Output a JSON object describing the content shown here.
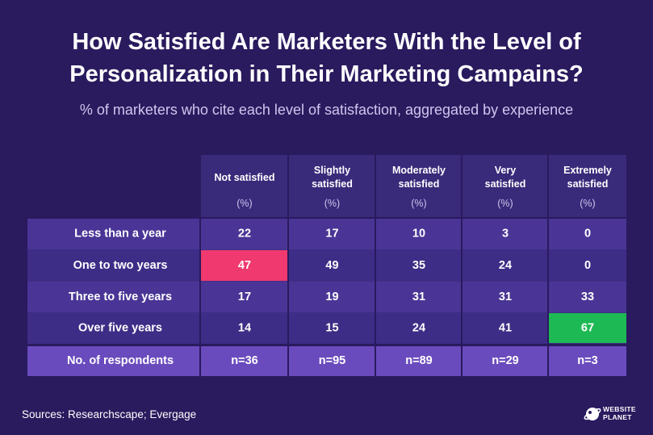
{
  "header": {
    "title_line1": "How Satisfied Are Marketers With the Level of",
    "title_line2": "Personalization in Their Marketing Campains?",
    "subtitle": "% of marketers who cite each level of satisfaction, aggregated by experience"
  },
  "chart_data": {
    "type": "table",
    "columns": [
      {
        "label": [
          "Not satisfied"
        ],
        "unit": "(%)"
      },
      {
        "label": [
          "Slightly",
          "satisfied"
        ],
        "unit": "(%)"
      },
      {
        "label": [
          "Moderately",
          "satisfied"
        ],
        "unit": "(%)"
      },
      {
        "label": [
          "Very",
          "satisfied"
        ],
        "unit": "(%)"
      },
      {
        "label": [
          "Extremely",
          "satisfied"
        ],
        "unit": "(%)"
      }
    ],
    "rows": [
      {
        "label": "Less than a year",
        "values": [
          22,
          17,
          10,
          3,
          0
        ]
      },
      {
        "label": "One to two years",
        "values": [
          47,
          49,
          35,
          24,
          0
        ]
      },
      {
        "label": "Three to five years",
        "values": [
          17,
          19,
          31,
          31,
          33
        ]
      },
      {
        "label": "Over five years",
        "values": [
          14,
          15,
          24,
          41,
          67
        ]
      }
    ],
    "footer": {
      "label": "No. of respondents",
      "values": [
        "n=36",
        "n=95",
        "n=89",
        "n=29",
        "n=3"
      ]
    },
    "highlights": [
      {
        "row": 1,
        "col": 0,
        "color": "#f0396e"
      },
      {
        "row": 3,
        "col": 4,
        "color": "#1db954"
      }
    ]
  },
  "footer": {
    "source": "Sources: Researchscape; Evergage",
    "logo_line1": "WEBSITE",
    "logo_line2": "PLANET"
  },
  "colors": {
    "background": "#2a1a5e",
    "header_cell": "#3a2a7a",
    "row_a": "#4a3596",
    "row_b": "#3e2d86",
    "footer_row": "#6a4bbd",
    "grid_line": "#2a1a5e"
  }
}
